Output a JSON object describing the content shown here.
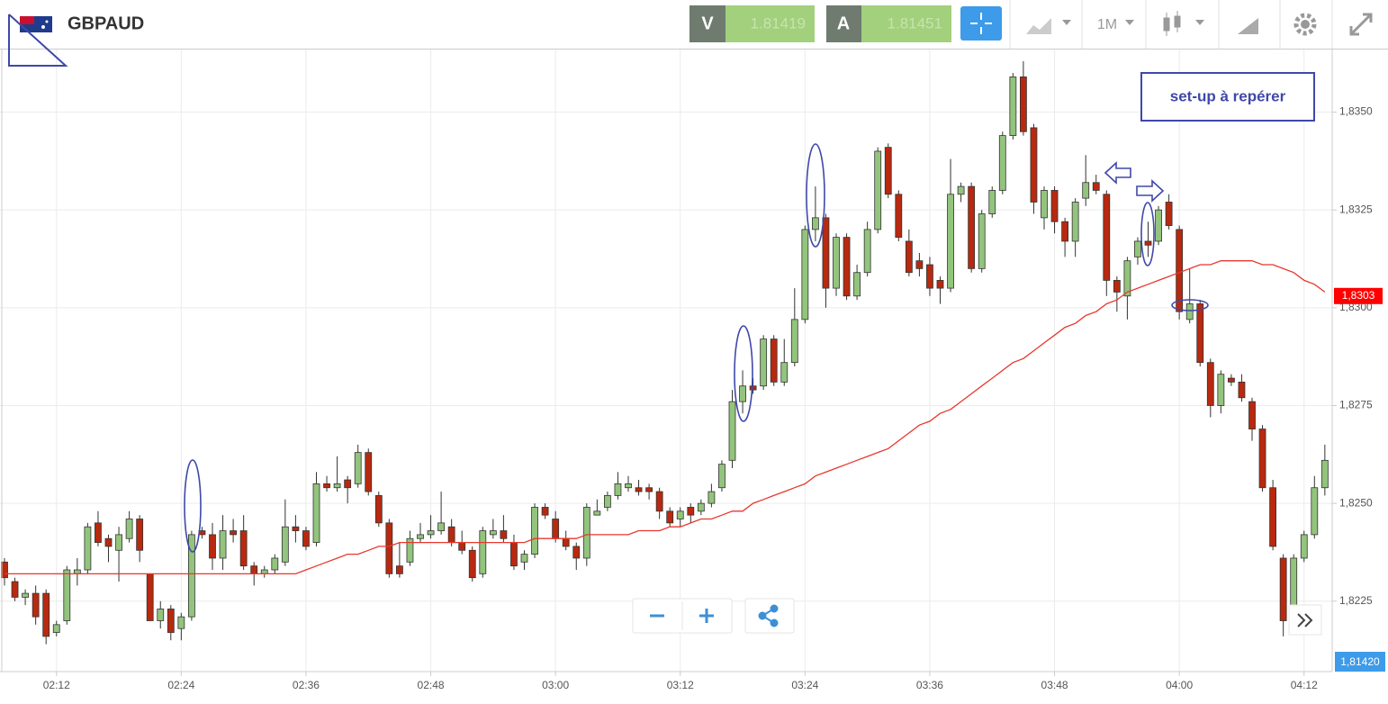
{
  "header": {
    "symbol": "GBPAUD",
    "sell_label": "V",
    "sell_price": "1.81419",
    "buy_label": "A",
    "buy_price": "1.81451",
    "timeframe": "1M"
  },
  "chart_data": {
    "type": "candlestick",
    "annotation": "set-up à repérer",
    "categories": [
      null,
      null,
      null,
      null,
      null,
      "02:12",
      null,
      null,
      null,
      null,
      null,
      null,
      null,
      null,
      null,
      null,
      null,
      "02:24",
      null,
      null,
      null,
      null,
      null,
      null,
      null,
      null,
      null,
      null,
      null,
      "02:36",
      null,
      null,
      null,
      null,
      null,
      null,
      null,
      null,
      null,
      null,
      null,
      "02:48",
      null,
      null,
      null,
      null,
      null,
      null,
      null,
      null,
      null,
      null,
      null,
      "03:00",
      null,
      null,
      null,
      null,
      null,
      null,
      null,
      null,
      null,
      null,
      null,
      "03:12",
      null,
      null,
      null,
      null,
      null,
      null,
      null,
      null,
      null,
      null,
      null,
      "03:24",
      null,
      null,
      null,
      null,
      null,
      null,
      null,
      null,
      null,
      null,
      null,
      "03:36",
      null,
      null,
      null,
      null,
      null,
      null,
      null,
      null,
      null,
      null,
      null,
      "03:48",
      null,
      null,
      null,
      null,
      null,
      null,
      null,
      null,
      null,
      null,
      null,
      "04:00",
      null,
      null,
      null,
      null,
      null,
      null,
      null,
      null,
      null,
      null,
      null,
      "04:12",
      null,
      null
    ],
    "open": [
      1.8235,
      1.823,
      1.8226,
      1.8227,
      1.8227,
      1.8217,
      1.822,
      1.8232,
      1.8233,
      1.8245,
      1.8241,
      1.8238,
      1.8241,
      1.8246,
      1.8232,
      1.822,
      1.8223,
      1.8218,
      1.8221,
      1.8243,
      1.8242,
      1.8236,
      1.8243,
      1.8243,
      1.8234,
      1.8232,
      1.8233,
      1.8235,
      1.8244,
      1.8243,
      1.824,
      1.8255,
      1.8254,
      1.8256,
      1.8255,
      1.8263,
      1.8252,
      1.8245,
      1.8234,
      1.8235,
      1.8241,
      1.8242,
      1.8243,
      1.8244,
      1.824,
      1.8238,
      1.8232,
      1.8242,
      1.8243,
      1.824,
      1.8235,
      1.8237,
      1.8249,
      1.8246,
      1.8241,
      1.8239,
      1.8236,
      1.8247,
      1.8249,
      1.8252,
      1.8254,
      1.8254,
      1.8254,
      1.8253,
      1.8248,
      1.8246,
      1.8249,
      1.8248,
      1.825,
      1.8254,
      1.8261,
      1.8276,
      1.828,
      1.828,
      1.8292,
      1.8281,
      1.8286,
      1.8297,
      1.832,
      1.8323,
      1.8305,
      1.8318,
      1.8303,
      1.8309,
      1.832,
      1.8341,
      1.8329,
      1.8317,
      1.8312,
      1.8311,
      1.8307,
      1.8305,
      1.8329,
      1.8331,
      1.831,
      1.8324,
      1.833,
      1.8344,
      1.8359,
      1.8346,
      1.8323,
      1.833,
      1.8322,
      1.8317,
      1.8328,
      1.8332,
      1.8329,
      1.8307,
      1.8303,
      1.8313,
      1.8317,
      1.8317,
      1.8327,
      1.832,
      1.8297,
      1.8301,
      1.8286,
      1.8275,
      1.8282,
      1.8281,
      1.8276,
      1.8269,
      1.8254,
      1.8236,
      1.8222,
      1.8236,
      1.8242,
      1.8254
    ],
    "high": [
      1.8236,
      1.8231,
      1.8228,
      1.8229,
      1.8228,
      1.822,
      1.8234,
      1.8236,
      1.8245,
      1.8248,
      1.8242,
      1.8244,
      1.8248,
      1.8247,
      1.8232,
      1.8225,
      1.8224,
      1.8222,
      1.8243,
      1.8244,
      1.8245,
      1.8247,
      1.8246,
      1.8247,
      1.8235,
      1.8234,
      1.8237,
      1.8251,
      1.8247,
      1.8244,
      1.8258,
      1.8257,
      1.8262,
      1.8257,
      1.8265,
      1.8264,
      1.8253,
      1.8246,
      1.824,
      1.8243,
      1.8245,
      1.8247,
      1.8253,
      1.8246,
      1.8243,
      1.8239,
      1.8244,
      1.8246,
      1.8247,
      1.8242,
      1.8238,
      1.825,
      1.825,
      1.8248,
      1.8243,
      1.824,
      1.825,
      1.8251,
      1.8253,
      1.8258,
      1.8257,
      1.8256,
      1.8255,
      1.8254,
      1.8249,
      1.8249,
      1.825,
      1.8251,
      1.8255,
      1.8261,
      1.8279,
      1.8284,
      1.8282,
      1.8293,
      1.8293,
      1.8292,
      1.8305,
      1.8321,
      1.8331,
      1.8324,
      1.8319,
      1.8319,
      1.8311,
      1.8322,
      1.8341,
      1.8342,
      1.833,
      1.832,
      1.8314,
      1.8313,
      1.8308,
      1.8338,
      1.8332,
      1.8332,
      1.8325,
      1.8331,
      1.8345,
      1.836,
      1.8363,
      1.8347,
      1.8331,
      1.8331,
      1.8323,
      1.8328,
      1.8339,
      1.8334,
      1.833,
      1.8308,
      1.8313,
      1.8318,
      1.8322,
      1.8326,
      1.8329,
      1.8321,
      1.831,
      1.8302,
      1.8287,
      1.8284,
      1.8283,
      1.8283,
      1.8277,
      1.827,
      1.8256,
      1.8237,
      1.8237,
      1.8243,
      1.8257,
      1.8265
    ],
    "low": [
      1.8229,
      1.8225,
      1.8224,
      1.8219,
      1.8214,
      1.8216,
      1.8219,
      1.8229,
      1.8232,
      1.8239,
      1.8235,
      1.823,
      1.824,
      1.8235,
      1.822,
      1.8218,
      1.8215,
      1.8215,
      1.822,
      1.8241,
      1.8233,
      1.8233,
      1.824,
      1.8233,
      1.8229,
      1.8231,
      1.8232,
      1.8234,
      1.824,
      1.8238,
      1.8239,
      1.8253,
      1.8253,
      1.825,
      1.8254,
      1.8252,
      1.8244,
      1.8231,
      1.8231,
      1.8234,
      1.824,
      1.8241,
      1.8242,
      1.8239,
      1.8237,
      1.823,
      1.8231,
      1.8241,
      1.824,
      1.8233,
      1.8233,
      1.8236,
      1.8246,
      1.824,
      1.8238,
      1.8233,
      1.8234,
      1.8247,
      1.8248,
      1.8251,
      1.8253,
      1.8252,
      1.8251,
      1.8246,
      1.8244,
      1.8244,
      1.8245,
      1.8247,
      1.8249,
      1.8253,
      1.8259,
      1.8273,
      1.8278,
      1.8279,
      1.828,
      1.828,
      1.8285,
      1.8296,
      1.8317,
      1.83,
      1.8303,
      1.8302,
      1.8302,
      1.8308,
      1.8319,
      1.8328,
      1.8317,
      1.8308,
      1.8308,
      1.8303,
      1.8301,
      1.8304,
      1.8327,
      1.8309,
      1.8309,
      1.8323,
      1.8329,
      1.8343,
      1.8344,
      1.8324,
      1.832,
      1.8319,
      1.8313,
      1.8313,
      1.8326,
      1.8329,
      1.8303,
      1.8299,
      1.8297,
      1.8311,
      1.8313,
      1.8316,
      1.832,
      1.8297,
      1.8296,
      1.8285,
      1.8272,
      1.8273,
      1.828,
      1.8276,
      1.8266,
      1.8253,
      1.8238,
      1.8216,
      1.8221,
      1.8235,
      1.8241,
      1.8252
    ],
    "close": [
      1.8231,
      1.8226,
      1.8227,
      1.8221,
      1.8216,
      1.8219,
      1.8233,
      1.8233,
      1.8244,
      1.824,
      1.8239,
      1.8242,
      1.8246,
      1.8238,
      1.822,
      1.8223,
      1.8217,
      1.8221,
      1.8242,
      1.8242,
      1.8236,
      1.8243,
      1.8242,
      1.8234,
      1.8232,
      1.8233,
      1.8236,
      1.8244,
      1.8243,
      1.8239,
      1.8255,
      1.8254,
      1.8255,
      1.8254,
      1.8263,
      1.8253,
      1.8245,
      1.8232,
      1.8232,
      1.8241,
      1.8242,
      1.8243,
      1.8245,
      1.824,
      1.8238,
      1.8231,
      1.8243,
      1.8243,
      1.8241,
      1.8234,
      1.8237,
      1.8249,
      1.8247,
      1.8241,
      1.8239,
      1.8236,
      1.8249,
      1.8248,
      1.8252,
      1.8255,
      1.8255,
      1.8253,
      1.8253,
      1.8248,
      1.8245,
      1.8248,
      1.8247,
      1.825,
      1.8253,
      1.826,
      1.8276,
      1.828,
      1.8279,
      1.8292,
      1.8281,
      1.8286,
      1.8297,
      1.832,
      1.8323,
      1.8305,
      1.8318,
      1.8303,
      1.8309,
      1.832,
      1.834,
      1.8329,
      1.8318,
      1.8309,
      1.831,
      1.8305,
      1.8305,
      1.8329,
      1.8331,
      1.831,
      1.8324,
      1.833,
      1.8344,
      1.8359,
      1.8345,
      1.8327,
      1.833,
      1.8322,
      1.8317,
      1.8327,
      1.8332,
      1.833,
      1.8307,
      1.8304,
      1.8312,
      1.8317,
      1.8316,
      1.8325,
      1.8321,
      1.8299,
      1.8301,
      1.8286,
      1.8275,
      1.8283,
      1.8281,
      1.8277,
      1.8269,
      1.8254,
      1.8239,
      1.822,
      1.8236,
      1.8242,
      1.8254,
      1.8261
    ],
    "up_color": "#93c47d",
    "down_color": "#b8290f",
    "moving_average": {
      "color": "#e8372c",
      "values": [
        1.8232,
        1.8232,
        1.8232,
        1.8232,
        1.8232,
        1.8232,
        1.8232,
        1.8232,
        1.8232,
        1.8232,
        1.8232,
        1.8232,
        1.8232,
        1.8232,
        1.8232,
        1.8232,
        1.8232,
        1.8232,
        1.8232,
        1.8232,
        1.8232,
        1.8232,
        1.8232,
        1.8232,
        1.8232,
        1.8232,
        1.8232,
        1.8232,
        1.8232,
        1.8233,
        1.8234,
        1.8235,
        1.8236,
        1.8237,
        1.8237,
        1.8238,
        1.8239,
        1.8239,
        1.824,
        1.824,
        1.824,
        1.824,
        1.824,
        1.824,
        1.824,
        1.824,
        1.824,
        1.824,
        1.824,
        1.824,
        1.824,
        1.8241,
        1.8241,
        1.8241,
        1.8241,
        1.8241,
        1.8242,
        1.8242,
        1.8242,
        1.8242,
        1.8242,
        1.8243,
        1.8243,
        1.8243,
        1.8244,
        1.8244,
        1.8245,
        1.8246,
        1.8246,
        1.8247,
        1.8248,
        1.8248,
        1.825,
        1.8251,
        1.8252,
        1.8253,
        1.8254,
        1.8255,
        1.8257,
        1.8258,
        1.8259,
        1.826,
        1.8261,
        1.8262,
        1.8263,
        1.8264,
        1.8266,
        1.8268,
        1.827,
        1.8271,
        1.8273,
        1.8274,
        1.8276,
        1.8278,
        1.828,
        1.8282,
        1.8284,
        1.8286,
        1.8287,
        1.8289,
        1.8291,
        1.8293,
        1.8295,
        1.8296,
        1.8298,
        1.8299,
        1.8301,
        1.8302,
        1.8304,
        1.8305,
        1.8306,
        1.8307,
        1.8308,
        1.8309,
        1.831,
        1.8311,
        1.8311,
        1.8312,
        1.8312,
        1.8312,
        1.8312,
        1.8311,
        1.8311,
        1.831,
        1.8309,
        1.8307,
        1.8306,
        1.8304
      ]
    },
    "ylim": [
      1.8207,
      1.8366
    ],
    "yticks": [
      {
        "value": 1.8225,
        "label": "1,8225"
      },
      {
        "value": 1.825,
        "label": "1,8250"
      },
      {
        "value": 1.8275,
        "label": "1,8275"
      },
      {
        "value": 1.83,
        "label": "1,8300"
      },
      {
        "value": 1.8325,
        "label": "1,8325"
      },
      {
        "value": 1.835,
        "label": "1,8350"
      }
    ],
    "grid": true,
    "last_price": {
      "value": 1.8303,
      "label": "1,8303",
      "color": "#ff0000"
    },
    "price_tag": "1,81420"
  }
}
